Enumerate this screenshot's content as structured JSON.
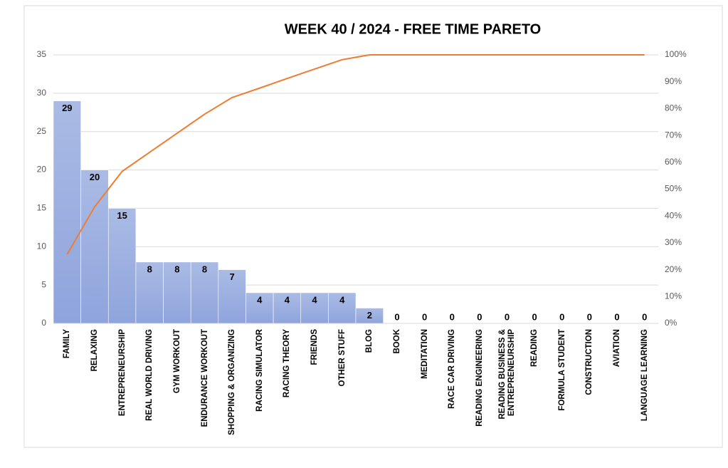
{
  "chart_data": {
    "type": "pareto",
    "title": "WEEK 40  / 2024  - FREE TIME PARETO",
    "categories": [
      "FAMILY",
      "RELAXING",
      "ENTREPRENEURSHIP",
      "REAL WORLD DRIVING",
      "GYM WORKOUT",
      "ENDURANCE WORKOUT",
      "SHOPPING & ORGANIZING",
      "RACING SIMULATOR",
      "RACING THEORY",
      "FRIENDS",
      "OTHER STUFF",
      "BLOG",
      "BOOK",
      "MEDITATION",
      "RACE CAR DRIVING",
      "READING ENGINEERING",
      "READING BUSINESS & ENTREPRENEURSHIP",
      "READING",
      "FORMULA STUDENT",
      "CONSTRUCTION",
      "AVIATION",
      "LANGUAGE LEARNING"
    ],
    "values": [
      29,
      20,
      15,
      8,
      8,
      8,
      7,
      4,
      4,
      4,
      4,
      2,
      0,
      0,
      0,
      0,
      0,
      0,
      0,
      0,
      0,
      0
    ],
    "color": "#8EA4DC",
    "cumulative": {
      "color": "#ED7D31",
      "axis": "y2",
      "values": [
        25.7,
        43.4,
        56.6,
        63.7,
        70.8,
        77.9,
        84.1,
        87.6,
        91.2,
        94.7,
        98.2,
        100,
        100,
        100,
        100,
        100,
        100,
        100,
        100,
        100,
        100,
        100
      ]
    },
    "ylim": [
      0,
      35
    ],
    "yticks": [
      0,
      5,
      10,
      15,
      20,
      25,
      30,
      35
    ],
    "y2lim": [
      0,
      100
    ],
    "y2ticks": [
      {
        "value": 0,
        "label": "0%"
      },
      {
        "value": 10,
        "label": "10%"
      },
      {
        "value": 20,
        "label": "20%"
      },
      {
        "value": 30,
        "label": "30%"
      },
      {
        "value": 40,
        "label": "40%"
      },
      {
        "value": 50,
        "label": "50%"
      },
      {
        "value": 60,
        "label": "60%"
      },
      {
        "value": 70,
        "label": "70%"
      },
      {
        "value": 80,
        "label": "80%"
      },
      {
        "value": 90,
        "label": "90%"
      },
      {
        "value": 100,
        "label": "100%"
      }
    ],
    "grid": true
  }
}
